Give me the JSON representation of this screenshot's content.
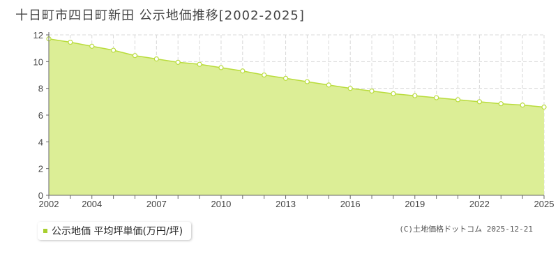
{
  "title": "十日町市四日町新田  公示地価推移[2002-2025]",
  "legend": {
    "label": "公示地価 平均坪単価(万円/坪)",
    "color": "#a8cf2e"
  },
  "copyright": "(C)土地価格ドットコム 2025-12-21",
  "colors": {
    "area_fill": "#dcee96",
    "line": "#b9dc3c",
    "grid": "#d8d8d8",
    "axis": "#666666"
  },
  "chart_data": {
    "type": "area",
    "title": "",
    "xlabel": "",
    "ylabel": "",
    "xlim": [
      2002,
      2025
    ],
    "ylim": [
      0,
      12
    ],
    "yticks": [
      0,
      2,
      4,
      6,
      8,
      10,
      12
    ],
    "xticks": [
      2002,
      2004,
      2007,
      2010,
      2013,
      2016,
      2019,
      2022,
      2025
    ],
    "grid": true,
    "series": [
      {
        "name": "公示地価 平均坪単価(万円/坪)",
        "x": [
          2002,
          2003,
          2004,
          2005,
          2006,
          2007,
          2008,
          2009,
          2010,
          2011,
          2012,
          2013,
          2014,
          2015,
          2016,
          2017,
          2018,
          2019,
          2020,
          2021,
          2022,
          2023,
          2024,
          2025
        ],
        "values": [
          11.7,
          11.45,
          11.15,
          10.85,
          10.45,
          10.2,
          9.95,
          9.8,
          9.55,
          9.3,
          9.0,
          8.75,
          8.5,
          8.25,
          8.0,
          7.8,
          7.6,
          7.45,
          7.3,
          7.15,
          7.0,
          6.85,
          6.75,
          6.6
        ]
      }
    ]
  }
}
